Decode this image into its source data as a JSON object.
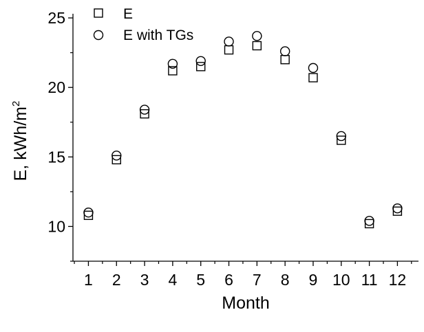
{
  "chart_data": {
    "type": "scatter",
    "title": "",
    "xlabel": "Month",
    "ylabel": "E, kWh/m",
    "ylabel_superscript": "2",
    "x": [
      1,
      2,
      3,
      4,
      5,
      6,
      7,
      8,
      9,
      10,
      11,
      12
    ],
    "x_ticks": [
      "1",
      "2",
      "3",
      "4",
      "5",
      "6",
      "7",
      "8",
      "9",
      "10",
      "11",
      "12"
    ],
    "y_ticks": [
      "10",
      "15",
      "20",
      "25"
    ],
    "xlim": [
      0.45,
      12.75
    ],
    "ylim": [
      7.5,
      25.3
    ],
    "grid": false,
    "legend_position": "top-left",
    "series": [
      {
        "name": "E",
        "marker": "square",
        "color": "#000000",
        "values": [
          10.8,
          14.8,
          18.1,
          21.2,
          21.5,
          22.7,
          23.0,
          22.0,
          20.7,
          16.2,
          10.2,
          11.1
        ]
      },
      {
        "name": "E with TGs",
        "marker": "circle",
        "color": "#000000",
        "values": [
          11.0,
          15.1,
          18.4,
          21.7,
          21.9,
          23.3,
          23.7,
          22.6,
          21.4,
          16.5,
          10.4,
          11.3
        ]
      }
    ]
  }
}
